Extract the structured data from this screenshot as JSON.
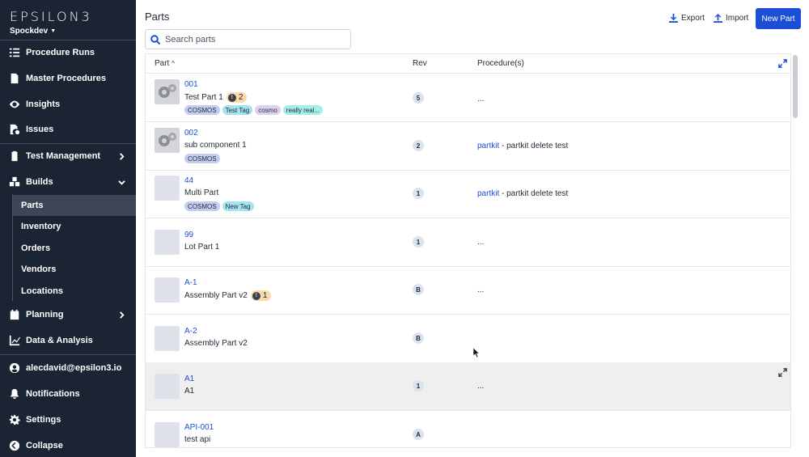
{
  "sidebar": {
    "logo": "EPSILON3",
    "workspace": "Spockdev",
    "nav": [
      {
        "label": "Procedure Runs",
        "icon": "procedure-runs-icon"
      },
      {
        "label": "Master Procedures",
        "icon": "document-icon"
      },
      {
        "label": "Insights",
        "icon": "eye-icon"
      },
      {
        "label": "Issues",
        "icon": "issue-file-icon"
      },
      {
        "label": "Test Management",
        "icon": "clipboard-icon"
      },
      {
        "label": "Builds",
        "icon": "cubes-icon"
      }
    ],
    "builds_sub": [
      "Parts",
      "Inventory",
      "Orders",
      "Vendors",
      "Locations"
    ],
    "nav_bottom": [
      {
        "label": "Planning",
        "icon": "calendar-icon"
      },
      {
        "label": "Data & Analysis",
        "icon": "chart-line-icon"
      }
    ],
    "user": "alecdavid@epsilon3.io",
    "notifications": "Notifications",
    "settings": "Settings",
    "collapse": "Collapse"
  },
  "header": {
    "title": "Parts",
    "export": "Export",
    "import": "Import",
    "new_part": "New Part"
  },
  "search": {
    "placeholder": "Search parts",
    "value": ""
  },
  "table": {
    "columns": {
      "part": "Part",
      "rev": "Rev",
      "procedures": "Procedure(s)"
    },
    "rows": [
      {
        "num": "001",
        "name": "Test Part 1",
        "issues": "2",
        "tags": [
          "COSMOS",
          "Test Tag",
          "cosmo",
          "really real..."
        ],
        "rev": "5",
        "proc_link": "",
        "proc_text": "..."
      },
      {
        "num": "002",
        "name": "sub component 1",
        "issues": "",
        "tags": [
          "COSMOS"
        ],
        "rev": "2",
        "proc_link": "partkit",
        "proc_text": " - partkit delete test"
      },
      {
        "num": "44",
        "name": "Multi Part",
        "issues": "",
        "tags": [
          "COSMOS",
          "New Tag"
        ],
        "rev": "1",
        "proc_link": "partkit",
        "proc_text": " - partkit delete test"
      },
      {
        "num": "99",
        "name": "Lot Part 1",
        "issues": "",
        "tags": [],
        "rev": "1",
        "proc_link": "",
        "proc_text": "..."
      },
      {
        "num": "A-1",
        "name": "Assembly Part v2",
        "issues": "1",
        "tags": [],
        "rev": "B",
        "proc_link": "",
        "proc_text": "..."
      },
      {
        "num": "A-2",
        "name": "Assembly Part v2",
        "issues": "",
        "tags": [],
        "rev": "B",
        "proc_link": "",
        "proc_text": ""
      },
      {
        "num": "A1",
        "name": "A1",
        "issues": "",
        "tags": [],
        "rev": "1",
        "proc_link": "",
        "proc_text": "..."
      },
      {
        "num": "API-001",
        "name": "test api",
        "issues": "",
        "tags": [],
        "rev": "A",
        "proc_link": "",
        "proc_text": ""
      }
    ]
  },
  "colors": {
    "sidebar_bg": "#1b2433",
    "accent": "#1d4ed8",
    "issue_badge": "#fcd9a8"
  }
}
